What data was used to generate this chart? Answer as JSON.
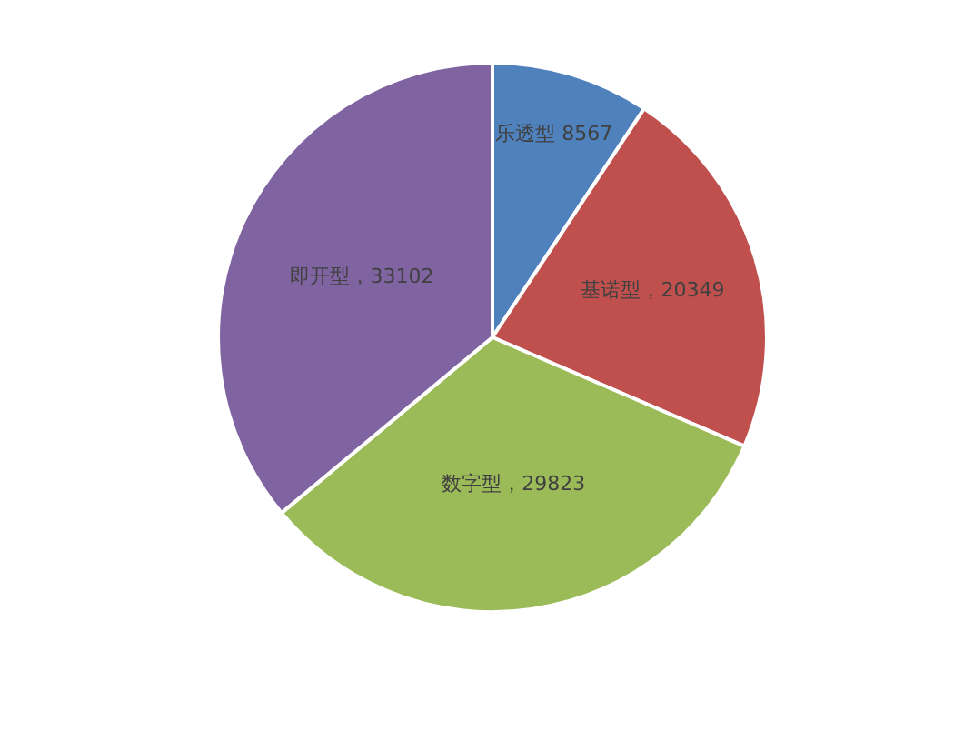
{
  "chart_data": {
    "type": "pie",
    "categories": [
      "乐透型",
      "基诺型",
      "数字型",
      "即开型"
    ],
    "values": [
      8567,
      20349,
      29823,
      33102
    ],
    "value_labels": [
      " 8567",
      "，20349",
      "，29823",
      "，33102"
    ],
    "colors": [
      "#4f81bd",
      "#c0504d",
      "#9bbb59",
      "#8064a2"
    ],
    "legend": false
  }
}
